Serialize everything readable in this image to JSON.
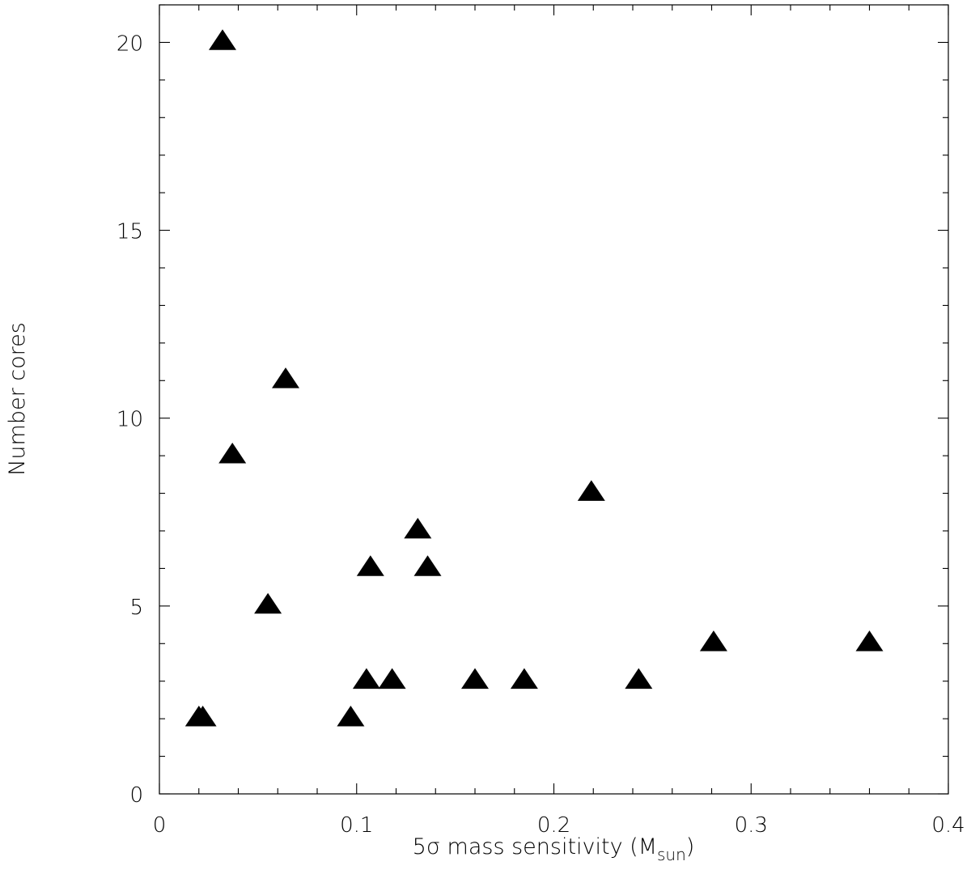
{
  "chart_data": {
    "type": "scatter",
    "title": "",
    "xlabel": {
      "prefix": "5σ mass sensitivity (M",
      "subscript": "sun",
      "suffix": ")"
    },
    "ylabel": "Number cores",
    "xlim": [
      0,
      0.4
    ],
    "ylim": [
      0,
      21
    ],
    "x_major_ticks": [
      0,
      0.1,
      0.2,
      0.3,
      0.4
    ],
    "x_tick_labels": [
      "0",
      "0.1",
      "0.2",
      "0.3",
      "0.4"
    ],
    "x_minor_step": 0.02,
    "y_major_ticks": [
      0,
      5,
      10,
      15,
      20
    ],
    "y_tick_labels": [
      "0",
      "5",
      "10",
      "15",
      "20"
    ],
    "y_minor_step": 1,
    "grid": false,
    "marker": "filled-triangle",
    "marker_color": "#000000",
    "points": [
      {
        "x": 0.02,
        "y": 2
      },
      {
        "x": 0.022,
        "y": 2
      },
      {
        "x": 0.032,
        "y": 20
      },
      {
        "x": 0.037,
        "y": 9
      },
      {
        "x": 0.055,
        "y": 5
      },
      {
        "x": 0.064,
        "y": 11
      },
      {
        "x": 0.097,
        "y": 2
      },
      {
        "x": 0.105,
        "y": 3
      },
      {
        "x": 0.107,
        "y": 6
      },
      {
        "x": 0.118,
        "y": 3
      },
      {
        "x": 0.131,
        "y": 7
      },
      {
        "x": 0.136,
        "y": 6
      },
      {
        "x": 0.16,
        "y": 3
      },
      {
        "x": 0.185,
        "y": 3
      },
      {
        "x": 0.219,
        "y": 8
      },
      {
        "x": 0.243,
        "y": 3
      },
      {
        "x": 0.281,
        "y": 4
      },
      {
        "x": 0.36,
        "y": 4
      }
    ]
  }
}
